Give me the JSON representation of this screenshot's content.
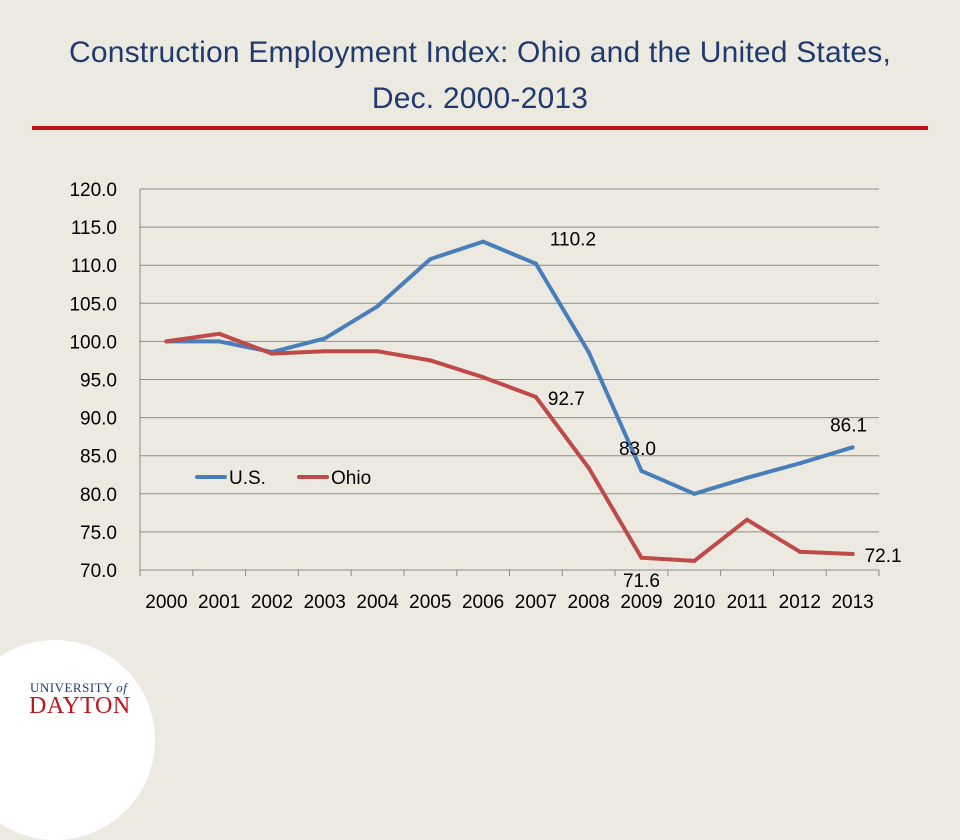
{
  "slide": {
    "title": "Construction Employment Index: Ohio and the United States, Dec. 2000-2013"
  },
  "logo": {
    "line1": "UNIVERSITY",
    "line1_suffix": "of",
    "line2": "DAYTON"
  },
  "colors": {
    "title": "#1f3a6e",
    "rule": "#c0141b",
    "us": "#4a7ebb",
    "ohio": "#be4b48",
    "grid": "#8c8c8c"
  },
  "chart_data": {
    "type": "line",
    "title": "",
    "xlabel": "",
    "ylabel": "",
    "categories": [
      "2000",
      "2001",
      "2002",
      "2003",
      "2004",
      "2005",
      "2006",
      "2007",
      "2008",
      "2009",
      "2010",
      "2011",
      "2012",
      "2013"
    ],
    "ylim": [
      70,
      120
    ],
    "ytick_labels": [
      "70.0",
      "75.0",
      "80.0",
      "85.0",
      "90.0",
      "95.0",
      "100.0",
      "105.0",
      "110.0",
      "115.0",
      "120.0"
    ],
    "grid": true,
    "legend_position": "lower-left inside plot",
    "series": [
      {
        "name": "U.S.",
        "color": "#4a7ebb",
        "values": [
          100.0,
          100.0,
          98.6,
          100.4,
          104.6,
          110.8,
          113.1,
          110.2,
          98.6,
          83.0,
          80.0,
          82.1,
          84.0,
          86.1
        ]
      },
      {
        "name": "Ohio",
        "color": "#be4b48",
        "values": [
          100.0,
          101.0,
          98.4,
          98.7,
          98.7,
          97.5,
          95.3,
          92.7,
          83.4,
          71.6,
          71.2,
          76.6,
          72.4,
          72.1
        ]
      }
    ],
    "annotations": [
      {
        "series": 0,
        "index": 7,
        "label": "110.2",
        "pos": "above-right"
      },
      {
        "series": 1,
        "index": 7,
        "label": "92.7",
        "pos": "right"
      },
      {
        "series": 0,
        "index": 9,
        "label": "83.0",
        "pos": "above"
      },
      {
        "series": 1,
        "index": 9,
        "label": "71.6",
        "pos": "below"
      },
      {
        "series": 0,
        "index": 13,
        "label": "86.1",
        "pos": "above"
      },
      {
        "series": 1,
        "index": 13,
        "label": "72.1",
        "pos": "right"
      }
    ]
  }
}
